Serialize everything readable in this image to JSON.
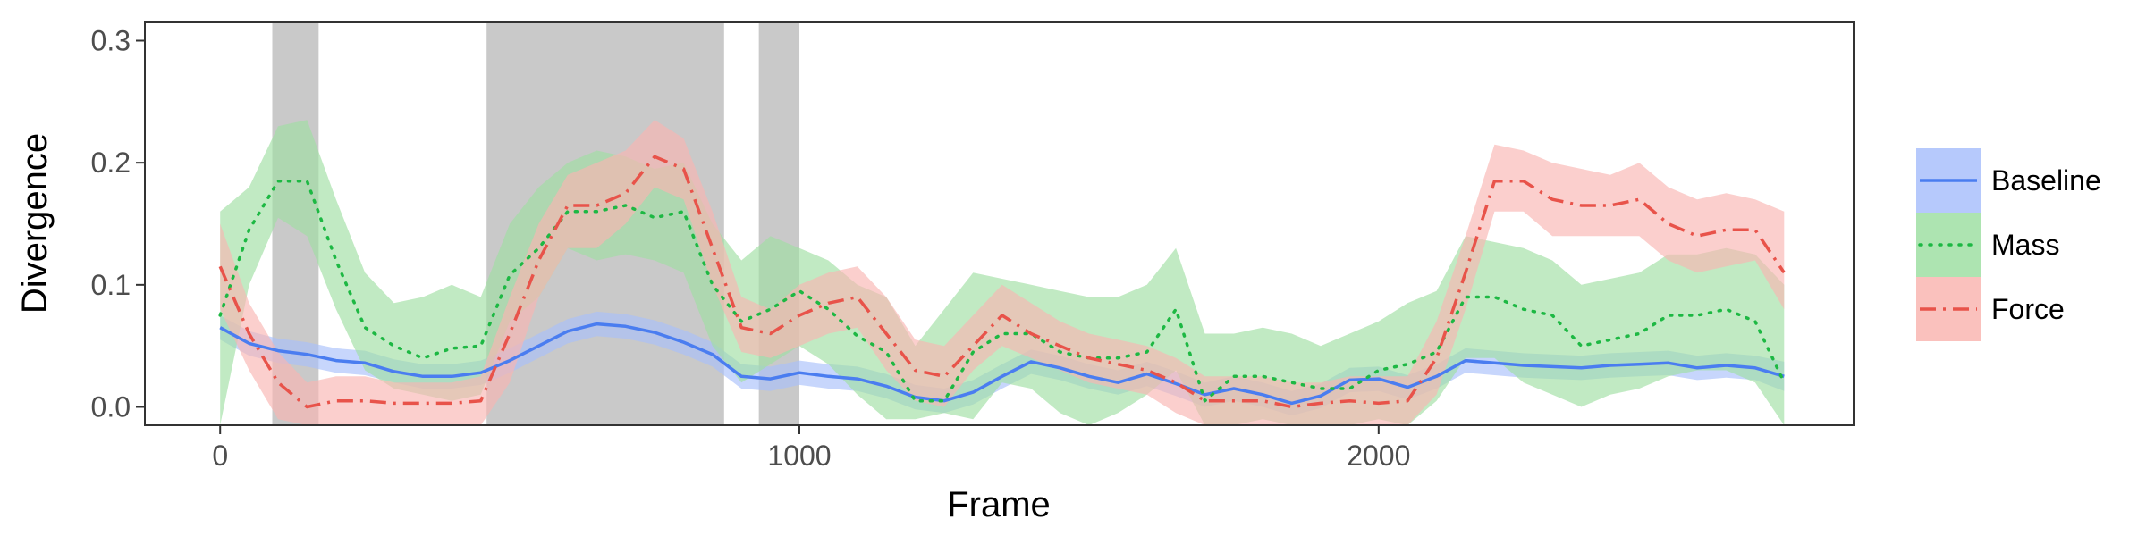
{
  "chart_data": {
    "type": "line",
    "title": "",
    "xlabel": "Frame",
    "ylabel": "Divergence",
    "xlim": [
      -130,
      2820
    ],
    "ylim": [
      -0.015,
      0.315
    ],
    "xticks": [
      0,
      1000,
      2000
    ],
    "yticks": [
      0.0,
      0.1,
      0.2,
      0.3
    ],
    "xtick_labels": [
      "0",
      "1000",
      "2000"
    ],
    "ytick_labels": [
      "0.0",
      "0.1",
      "0.2",
      "0.3"
    ],
    "grid": false,
    "legend_position": "right",
    "shaded_regions": [
      [
        90,
        170
      ],
      [
        460,
        870
      ],
      [
        930,
        1000
      ]
    ],
    "shade_color": "#c9c9c9",
    "x": [
      0,
      50,
      100,
      150,
      200,
      250,
      300,
      350,
      400,
      450,
      500,
      550,
      600,
      650,
      700,
      750,
      800,
      850,
      900,
      950,
      1000,
      1050,
      1100,
      1150,
      1200,
      1250,
      1300,
      1350,
      1400,
      1450,
      1500,
      1550,
      1600,
      1650,
      1700,
      1750,
      1800,
      1850,
      1900,
      1950,
      2000,
      2050,
      2100,
      2150,
      2200,
      2250,
      2300,
      2350,
      2400,
      2450,
      2500,
      2550,
      2600,
      2650,
      2700
    ],
    "series": [
      {
        "name": "Baseline",
        "color": "#4a7df0",
        "band_color": "#a9c0fb",
        "dash": "solid",
        "values": [
          0.065,
          0.052,
          0.046,
          0.043,
          0.038,
          0.036,
          0.029,
          0.025,
          0.025,
          0.028,
          0.038,
          0.05,
          0.062,
          0.068,
          0.066,
          0.061,
          0.053,
          0.043,
          0.025,
          0.023,
          0.028,
          0.025,
          0.023,
          0.017,
          0.008,
          0.005,
          0.012,
          0.025,
          0.037,
          0.032,
          0.025,
          0.02,
          0.027,
          0.019,
          0.01,
          0.015,
          0.01,
          0.003,
          0.009,
          0.022,
          0.023,
          0.016,
          0.025,
          0.038,
          0.036,
          0.034,
          0.033,
          0.032,
          0.034,
          0.035,
          0.036,
          0.032,
          0.034,
          0.032,
          0.025
        ],
        "lower": [
          0.055,
          0.042,
          0.036,
          0.033,
          0.028,
          0.026,
          0.02,
          0.015,
          0.015,
          0.018,
          0.028,
          0.04,
          0.052,
          0.058,
          0.056,
          0.051,
          0.043,
          0.033,
          0.015,
          0.013,
          0.018,
          0.015,
          0.013,
          0.007,
          -0.002,
          -0.005,
          0.002,
          0.015,
          0.027,
          0.022,
          0.015,
          0.01,
          0.017,
          0.009,
          0.0,
          0.005,
          0.0,
          -0.007,
          -0.001,
          0.012,
          0.013,
          0.006,
          0.015,
          0.028,
          0.026,
          0.024,
          0.023,
          0.022,
          0.024,
          0.025,
          0.026,
          0.022,
          0.024,
          0.022,
          0.013
        ],
        "upper": [
          0.075,
          0.062,
          0.056,
          0.053,
          0.048,
          0.046,
          0.039,
          0.035,
          0.035,
          0.038,
          0.048,
          0.06,
          0.072,
          0.078,
          0.076,
          0.071,
          0.063,
          0.053,
          0.035,
          0.033,
          0.038,
          0.035,
          0.033,
          0.027,
          0.018,
          0.015,
          0.022,
          0.035,
          0.047,
          0.042,
          0.035,
          0.03,
          0.037,
          0.029,
          0.02,
          0.025,
          0.02,
          0.013,
          0.019,
          0.032,
          0.033,
          0.026,
          0.035,
          0.048,
          0.046,
          0.044,
          0.043,
          0.042,
          0.044,
          0.045,
          0.046,
          0.042,
          0.044,
          0.042,
          0.037
        ]
      },
      {
        "name": "Mass",
        "color": "#1db843",
        "band_color": "#9fdfa3",
        "dash": "dotted",
        "values": [
          0.075,
          0.145,
          0.185,
          0.185,
          0.12,
          0.065,
          0.05,
          0.04,
          0.048,
          0.05,
          0.108,
          0.13,
          0.16,
          0.16,
          0.165,
          0.155,
          0.16,
          0.1,
          0.07,
          0.08,
          0.095,
          0.08,
          0.058,
          0.045,
          0.005,
          0.005,
          0.045,
          0.06,
          0.06,
          0.045,
          0.04,
          0.04,
          0.045,
          0.08,
          0.005,
          0.025,
          0.025,
          0.02,
          0.015,
          0.015,
          0.03,
          0.035,
          0.045,
          0.09,
          0.09,
          0.08,
          0.075,
          0.05,
          0.055,
          0.06,
          0.075,
          0.075,
          0.08,
          0.07,
          0.02
        ],
        "lower": [
          -0.015,
          0.1,
          0.155,
          0.14,
          0.08,
          0.03,
          0.015,
          0.01,
          0.005,
          0.01,
          0.07,
          0.09,
          0.13,
          0.12,
          0.125,
          0.12,
          0.11,
          0.05,
          0.02,
          0.035,
          0.05,
          0.035,
          0.01,
          -0.01,
          -0.01,
          -0.005,
          -0.01,
          0.02,
          0.015,
          -0.005,
          -0.015,
          -0.005,
          0.01,
          0.03,
          -0.015,
          -0.015,
          -0.01,
          -0.015,
          -0.015,
          -0.015,
          -0.01,
          -0.015,
          0.005,
          0.04,
          0.04,
          0.02,
          0.01,
          0.0,
          0.01,
          0.015,
          0.025,
          0.03,
          0.03,
          0.02,
          -0.015
        ],
        "upper": [
          0.16,
          0.18,
          0.23,
          0.235,
          0.17,
          0.11,
          0.085,
          0.09,
          0.1,
          0.09,
          0.15,
          0.18,
          0.2,
          0.21,
          0.205,
          0.195,
          0.2,
          0.15,
          0.12,
          0.14,
          0.13,
          0.12,
          0.1,
          0.09,
          0.05,
          0.08,
          0.11,
          0.105,
          0.1,
          0.095,
          0.09,
          0.09,
          0.1,
          0.13,
          0.06,
          0.06,
          0.065,
          0.06,
          0.05,
          0.06,
          0.07,
          0.085,
          0.095,
          0.14,
          0.135,
          0.13,
          0.12,
          0.1,
          0.105,
          0.11,
          0.125,
          0.125,
          0.13,
          0.125,
          0.1
        ]
      },
      {
        "name": "Force",
        "color": "#e8534a",
        "band_color": "#f9b6b2",
        "dash": "dashdot",
        "values": [
          0.115,
          0.06,
          0.02,
          0.0,
          0.005,
          0.005,
          0.003,
          0.003,
          0.003,
          0.005,
          0.06,
          0.12,
          0.165,
          0.165,
          0.175,
          0.205,
          0.195,
          0.13,
          0.065,
          0.06,
          0.075,
          0.085,
          0.09,
          0.06,
          0.03,
          0.025,
          0.05,
          0.075,
          0.06,
          0.05,
          0.04,
          0.035,
          0.03,
          0.02,
          0.005,
          0.005,
          0.005,
          0.0,
          0.003,
          0.005,
          0.003,
          0.005,
          0.04,
          0.11,
          0.185,
          0.185,
          0.17,
          0.165,
          0.165,
          0.17,
          0.15,
          0.14,
          0.145,
          0.145,
          0.11
        ],
        "lower": [
          0.08,
          0.03,
          -0.01,
          -0.015,
          -0.015,
          -0.015,
          -0.015,
          -0.015,
          -0.015,
          -0.015,
          0.02,
          0.09,
          0.13,
          0.13,
          0.15,
          0.18,
          0.17,
          0.1,
          0.045,
          0.04,
          0.05,
          0.06,
          0.065,
          0.03,
          0.005,
          0.0,
          0.03,
          0.05,
          0.04,
          0.03,
          0.02,
          0.015,
          0.01,
          -0.005,
          -0.015,
          -0.015,
          -0.015,
          -0.015,
          -0.015,
          -0.015,
          -0.015,
          -0.015,
          0.01,
          0.08,
          0.16,
          0.16,
          0.14,
          0.14,
          0.14,
          0.14,
          0.12,
          0.11,
          0.115,
          0.12,
          0.08
        ],
        "upper": [
          0.15,
          0.085,
          0.045,
          0.02,
          0.025,
          0.025,
          0.02,
          0.02,
          0.02,
          0.025,
          0.09,
          0.15,
          0.19,
          0.2,
          0.21,
          0.235,
          0.22,
          0.16,
          0.09,
          0.08,
          0.1,
          0.11,
          0.115,
          0.09,
          0.055,
          0.05,
          0.075,
          0.1,
          0.085,
          0.07,
          0.06,
          0.055,
          0.05,
          0.04,
          0.025,
          0.025,
          0.025,
          0.02,
          0.02,
          0.025,
          0.025,
          0.025,
          0.07,
          0.14,
          0.215,
          0.21,
          0.2,
          0.195,
          0.19,
          0.2,
          0.18,
          0.17,
          0.175,
          0.17,
          0.16
        ]
      }
    ]
  }
}
